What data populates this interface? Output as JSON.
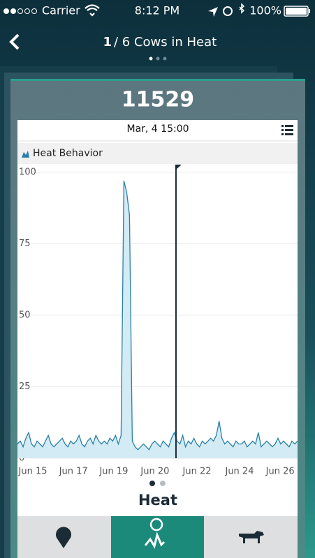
{
  "status_bar": {
    "carrier": "Carrier",
    "time": "8:12 PM",
    "battery": "100%"
  },
  "header": {
    "page_index": "1",
    "title": "/ 6 Cows in Heat"
  },
  "card": {
    "cow_id": "11529"
  },
  "chart_data": {
    "type": "area",
    "title": "Heat",
    "cursor_label": "Mar, 4  15:00",
    "x": [
      0,
      1,
      2,
      3,
      4,
      5,
      6,
      7,
      8,
      9,
      10,
      11,
      12,
      13,
      14,
      15,
      16,
      17,
      18,
      19,
      20,
      21,
      22,
      23,
      24,
      25,
      26,
      27,
      28,
      29,
      30,
      31,
      32,
      33,
      34,
      35,
      36,
      37,
      38,
      39,
      40,
      41,
      42,
      43,
      44,
      45,
      46,
      47,
      48,
      49,
      50,
      51,
      52,
      53,
      54,
      55,
      56,
      57,
      58,
      59,
      60,
      61,
      62,
      63,
      64,
      65,
      66,
      67,
      68,
      69,
      70,
      71,
      72,
      73,
      74,
      75,
      76,
      77,
      78,
      79,
      80,
      81,
      82,
      83,
      84,
      85,
      86,
      87,
      88,
      89,
      90,
      91,
      92,
      93,
      94,
      95,
      96,
      97,
      98,
      99,
      100
    ],
    "series": [
      {
        "name": "Heat Behavior",
        "color": "#2a7fa8",
        "fill": "#d3ebf4",
        "values": [
          5,
          6,
          4,
          7,
          9,
          5,
          4,
          6,
          5,
          4,
          6,
          8,
          5,
          4,
          5,
          6,
          7,
          5,
          4,
          6,
          5,
          6,
          8,
          5,
          4,
          6,
          7,
          5,
          8,
          6,
          5,
          6,
          5,
          7,
          6,
          8,
          5,
          8,
          97,
          93,
          85,
          6,
          4,
          3,
          4,
          5,
          4,
          3,
          5,
          6,
          5,
          4,
          6,
          5,
          4,
          7,
          9,
          6,
          5,
          8,
          4,
          6,
          5,
          7,
          5,
          4,
          6,
          5,
          6,
          7,
          6,
          8,
          13,
          7,
          5,
          6,
          5,
          4,
          6,
          5,
          5,
          6,
          4,
          5,
          6,
          5,
          9,
          4,
          5,
          6,
          5,
          4,
          5,
          7,
          5,
          6,
          5,
          4,
          6,
          5,
          6
        ]
      }
    ],
    "marker_x": 56.6,
    "xlim": [
      0,
      100
    ],
    "xticks": [
      {
        "value": 5.5,
        "label": "Jun 15"
      },
      {
        "value": 20,
        "label": "Jun 17"
      },
      {
        "value": 34.4,
        "label": "Jun 19"
      },
      {
        "value": 49.1,
        "label": "Jun 20"
      },
      {
        "value": 64.1,
        "label": "Jun 22"
      },
      {
        "value": 79.3,
        "label": "Jun 24"
      },
      {
        "value": 93.8,
        "label": "Jun 26"
      }
    ],
    "ylim": [
      0,
      100
    ],
    "yticks": [
      0,
      25,
      50,
      75,
      100
    ],
    "grid": true
  }
}
